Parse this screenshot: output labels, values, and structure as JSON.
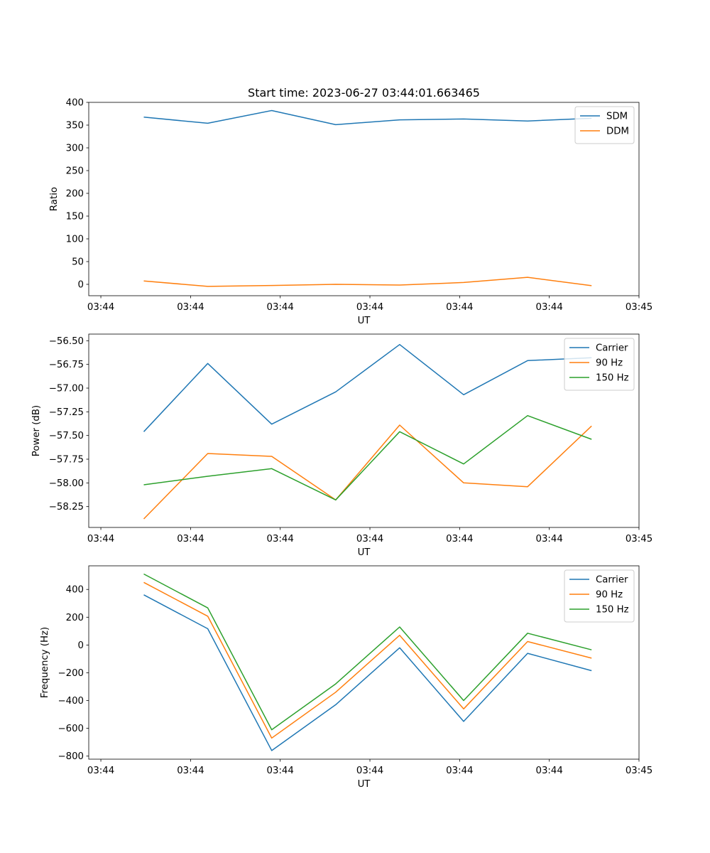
{
  "figure": {
    "title": "Start time: 2023-06-27 03:44:01.663465"
  },
  "chart_data": [
    {
      "type": "line",
      "title": "Start time: 2023-06-27 03:44:01.663465",
      "xlabel": "UT",
      "ylabel": "Ratio",
      "x_tick_labels": [
        "03:44",
        "03:44",
        "03:44",
        "03:44",
        "03:44",
        "03:44",
        "03:45"
      ],
      "y_ticks": [
        0,
        50,
        100,
        150,
        200,
        250,
        300,
        350,
        400
      ],
      "y_tick_labels": [
        "0",
        "50",
        "100",
        "150",
        "200",
        "250",
        "300",
        "350",
        "400"
      ],
      "ylim": [
        -25,
        400
      ],
      "legend": "top-right",
      "grid": false,
      "series": [
        {
          "name": "SDM",
          "color": "#1f77b4",
          "values": [
            367.5,
            354,
            382,
            351,
            361.5,
            363.5,
            359,
            365
          ]
        },
        {
          "name": "DDM",
          "color": "#ff7f0e",
          "values": [
            7.5,
            -4.5,
            -2.5,
            0,
            -1.5,
            4,
            15.5,
            -3
          ]
        }
      ]
    },
    {
      "type": "line",
      "title": "",
      "xlabel": "UT",
      "ylabel": "Power (dB)",
      "x_tick_labels": [
        "03:44",
        "03:44",
        "03:44",
        "03:44",
        "03:44",
        "03:44",
        "03:45"
      ],
      "y_ticks": [
        -58.25,
        -58.0,
        -57.75,
        -57.5,
        -57.25,
        -57.0,
        -56.75,
        -56.5
      ],
      "y_tick_labels": [
        "−58.25",
        "−58.00",
        "−57.75",
        "−57.50",
        "−57.25",
        "−57.00",
        "−56.75",
        "−56.50"
      ],
      "ylim": [
        -58.47,
        -56.43
      ],
      "legend": "top-right",
      "grid": false,
      "series": [
        {
          "name": "Carrier",
          "color": "#1f77b4",
          "values": [
            -57.46,
            -56.74,
            -57.38,
            -57.04,
            -56.54,
            -57.07,
            -56.71,
            -56.68
          ]
        },
        {
          "name": "90 Hz",
          "color": "#ff7f0e",
          "values": [
            -58.38,
            -57.69,
            -57.72,
            -58.18,
            -57.39,
            -58.0,
            -58.04,
            -57.4
          ]
        },
        {
          "name": "150 Hz",
          "color": "#2ca02c",
          "values": [
            -58.02,
            -57.93,
            -57.85,
            -58.18,
            -57.46,
            -57.8,
            -57.29,
            -57.54
          ]
        }
      ]
    },
    {
      "type": "line",
      "title": "",
      "xlabel": "UT",
      "ylabel": "Frequency (Hz)",
      "x_tick_labels": [
        "03:44",
        "03:44",
        "03:44",
        "03:44",
        "03:44",
        "03:44",
        "03:45"
      ],
      "y_ticks": [
        -800,
        -600,
        -400,
        -200,
        0,
        200,
        400
      ],
      "y_tick_labels": [
        "−800",
        "−600",
        "−400",
        "−200",
        "0",
        "200",
        "400"
      ],
      "ylim": [
        -822,
        570
      ],
      "legend": "top-right",
      "grid": false,
      "series": [
        {
          "name": "Carrier",
          "color": "#1f77b4",
          "values": [
            361,
            117,
            -760,
            -430,
            -20,
            -550,
            -60,
            -185
          ]
        },
        {
          "name": "90 Hz",
          "color": "#ff7f0e",
          "values": [
            451,
            207,
            -670,
            -340,
            70,
            -460,
            25,
            -95
          ]
        },
        {
          "name": "150 Hz",
          "color": "#2ca02c",
          "values": [
            511,
            267,
            -610,
            -280,
            130,
            -400,
            85,
            -35
          ]
        }
      ]
    }
  ]
}
